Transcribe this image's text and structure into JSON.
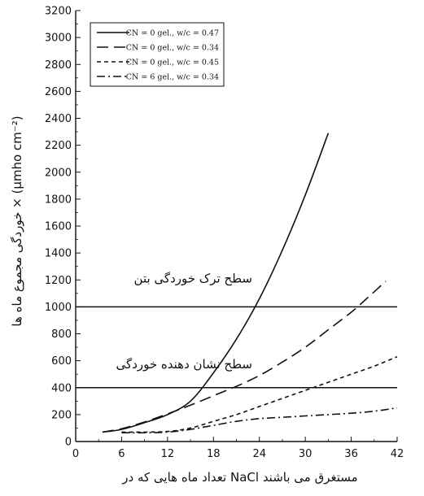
{
  "chart_data": {
    "type": "line",
    "xlabel": "تعداد ماه هایی که در NaCl مستغرق می باشند",
    "ylabel": "خوردگی مجموع ماه ها × (µmho cm⁻²)",
    "xlim": [
      0,
      42
    ],
    "ylim": [
      0,
      3200
    ],
    "x_ticks": [
      0,
      6,
      12,
      18,
      24,
      30,
      36,
      42
    ],
    "y_ticks": [
      0,
      200,
      400,
      600,
      800,
      1000,
      1200,
      1400,
      1600,
      1800,
      2000,
      2200,
      2400,
      2600,
      2800,
      3000,
      3200
    ],
    "grid": false,
    "legend_position": "top-left",
    "series": [
      {
        "name": "CN = 0 gel., w/c = 0.47",
        "style": "solid",
        "x": [
          3.5,
          6,
          9,
          12,
          15,
          18,
          21,
          24,
          27,
          30,
          33
        ],
        "y": [
          70,
          90,
          140,
          200,
          300,
          510,
          760,
          1060,
          1420,
          1830,
          2290
        ]
      },
      {
        "name": "CN = 0 gel., w/c = 0.34",
        "style": "dashed",
        "x": [
          3.5,
          6,
          9,
          12,
          15,
          18,
          21,
          24,
          27,
          30,
          33,
          36,
          38,
          40.5
        ],
        "y": [
          70,
          95,
          145,
          205,
          270,
          340,
          410,
          490,
          590,
          700,
          830,
          960,
          1060,
          1190
        ]
      },
      {
        "name": "CN = 0 gel., w/c = 0.45",
        "style": "dotted",
        "x": [
          6,
          9,
          12,
          15,
          18,
          21,
          24,
          27,
          30,
          33,
          36,
          39,
          42
        ],
        "y": [
          70,
          70,
          75,
          100,
          150,
          200,
          260,
          320,
          380,
          440,
          500,
          560,
          630
        ]
      },
      {
        "name": "CN = 6 gel., w/c = 0.34",
        "style": "dashdot",
        "x": [
          6,
          9,
          12,
          15,
          18,
          21,
          24,
          27,
          30,
          33,
          36,
          39,
          42
        ],
        "y": [
          65,
          65,
          70,
          90,
          120,
          150,
          170,
          180,
          190,
          200,
          210,
          225,
          250
        ]
      }
    ],
    "reference_lines": [
      {
        "y": 1000,
        "label": "سطح ترک خوردگی بتن"
      },
      {
        "y": 400,
        "label": "سطح نشان دهنده خوردگی"
      }
    ]
  }
}
